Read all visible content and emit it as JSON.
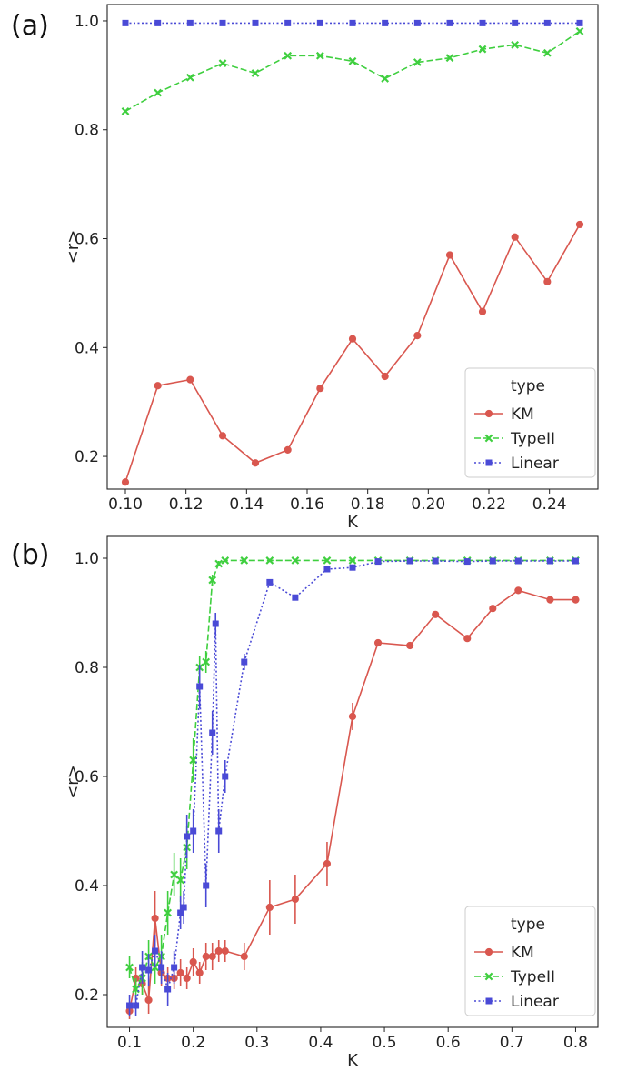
{
  "chart_data": [
    {
      "panel_label": "(a)",
      "type": "line",
      "xlabel": "K",
      "ylabel": "<r>",
      "xlim": [
        0.094,
        0.256
      ],
      "ylim": [
        0.14,
        1.03
      ],
      "xticks": [
        "0.10",
        "0.12",
        "0.14",
        "0.16",
        "0.18",
        "0.20",
        "0.22",
        "0.24"
      ],
      "yticks": [
        "0.2",
        "0.4",
        "0.6",
        "0.8",
        "1.0"
      ],
      "legend": {
        "title": "type",
        "placement": "lower right"
      },
      "series": [
        {
          "name": "KM",
          "color": "#d9574f",
          "marker": "circle",
          "dash": "solid",
          "x": [
            0.1,
            0.1107,
            0.1214,
            0.1321,
            0.1429,
            0.1536,
            0.1643,
            0.175,
            0.1857,
            0.1964,
            0.2071,
            0.2179,
            0.2286,
            0.2393,
            0.25
          ],
          "y": [
            0.153,
            0.33,
            0.341,
            0.238,
            0.188,
            0.212,
            0.325,
            0.416,
            0.347,
            0.422,
            0.57,
            0.466,
            0.603,
            0.521,
            0.626
          ]
        },
        {
          "name": "TypeII",
          "color": "#3fcf3f",
          "marker": "x",
          "dash": "dashed",
          "x": [
            0.1,
            0.1107,
            0.1214,
            0.1321,
            0.1429,
            0.1536,
            0.1643,
            0.175,
            0.1857,
            0.1964,
            0.2071,
            0.2179,
            0.2286,
            0.2393,
            0.25
          ],
          "y": [
            0.834,
            0.868,
            0.896,
            0.922,
            0.904,
            0.936,
            0.936,
            0.926,
            0.894,
            0.924,
            0.932,
            0.948,
            0.956,
            0.941,
            0.981
          ]
        },
        {
          "name": "Linear",
          "color": "#4a4ad6",
          "marker": "square",
          "dash": "dotted",
          "x": [
            0.1,
            0.1107,
            0.1214,
            0.1321,
            0.1429,
            0.1536,
            0.1643,
            0.175,
            0.1857,
            0.1964,
            0.2071,
            0.2179,
            0.2286,
            0.2393,
            0.25
          ],
          "y": [
            0.996,
            0.996,
            0.996,
            0.996,
            0.996,
            0.996,
            0.996,
            0.996,
            0.996,
            0.996,
            0.996,
            0.996,
            0.996,
            0.996,
            0.996
          ]
        }
      ]
    },
    {
      "panel_label": "(b)",
      "type": "line",
      "xlabel": "K",
      "ylabel": "<r>",
      "xlim": [
        0.065,
        0.835
      ],
      "ylim": [
        0.14,
        1.04
      ],
      "xticks": [
        "0.1",
        "0.2",
        "0.3",
        "0.4",
        "0.5",
        "0.6",
        "0.7",
        "0.8"
      ],
      "yticks": [
        "0.2",
        "0.4",
        "0.6",
        "0.8",
        "1.0"
      ],
      "legend": {
        "title": "type",
        "placement": "lower right"
      },
      "series": [
        {
          "name": "KM",
          "color": "#d9574f",
          "marker": "circle",
          "dash": "solid",
          "x": [
            0.1,
            0.11,
            0.12,
            0.13,
            0.14,
            0.15,
            0.16,
            0.17,
            0.18,
            0.19,
            0.2,
            0.21,
            0.22,
            0.23,
            0.24,
            0.25,
            0.28,
            0.32,
            0.36,
            0.41,
            0.45,
            0.49,
            0.54,
            0.58,
            0.63,
            0.67,
            0.71,
            0.76,
            0.8
          ],
          "y": [
            0.17,
            0.23,
            0.22,
            0.19,
            0.34,
            0.24,
            0.23,
            0.23,
            0.24,
            0.23,
            0.26,
            0.24,
            0.27,
            0.27,
            0.28,
            0.28,
            0.27,
            0.36,
            0.375,
            0.44,
            0.71,
            0.845,
            0.84,
            0.897,
            0.853,
            0.908,
            0.941,
            0.924,
            0.924
          ],
          "err": [
            0.015,
            0.02,
            0.02,
            0.025,
            0.05,
            0.025,
            0.02,
            0.02,
            0.025,
            0.02,
            0.025,
            0.02,
            0.025,
            0.025,
            0.02,
            0.02,
            0.025,
            0.05,
            0.045,
            0.04,
            0.025,
            0.005,
            0.005,
            0.005,
            0.005,
            0.005,
            0.005,
            0.005,
            0.005
          ]
        },
        {
          "name": "TypeII",
          "color": "#3fcf3f",
          "marker": "x",
          "dash": "dashed",
          "x": [
            0.1,
            0.11,
            0.12,
            0.13,
            0.14,
            0.15,
            0.16,
            0.17,
            0.18,
            0.19,
            0.2,
            0.21,
            0.22,
            0.23,
            0.24,
            0.25,
            0.28,
            0.32,
            0.36,
            0.41,
            0.45,
            0.49,
            0.54,
            0.58,
            0.63,
            0.67,
            0.71,
            0.76,
            0.8
          ],
          "y": [
            0.25,
            0.21,
            0.23,
            0.27,
            0.25,
            0.27,
            0.35,
            0.42,
            0.41,
            0.47,
            0.63,
            0.8,
            0.81,
            0.96,
            0.99,
            0.996,
            0.996,
            0.996,
            0.996,
            0.996,
            0.996,
            0.996,
            0.996,
            0.996,
            0.996,
            0.996,
            0.996,
            0.996,
            0.996
          ],
          "err": [
            0.02,
            0.02,
            0.03,
            0.03,
            0.03,
            0.04,
            0.04,
            0.04,
            0.04,
            0.04,
            0.04,
            0.02,
            0.02,
            0.01,
            0.005,
            0.003,
            0.003,
            0.003,
            0.003,
            0.003,
            0.003,
            0.003,
            0.003,
            0.003,
            0.003,
            0.003,
            0.003,
            0.003,
            0.003
          ]
        },
        {
          "name": "Linear",
          "color": "#4a4ad6",
          "marker": "square",
          "dash": "dotted",
          "x": [
            0.1,
            0.11,
            0.12,
            0.13,
            0.14,
            0.15,
            0.16,
            0.17,
            0.18,
            0.185,
            0.19,
            0.2,
            0.21,
            0.22,
            0.23,
            0.235,
            0.24,
            0.25,
            0.28,
            0.32,
            0.36,
            0.41,
            0.45,
            0.49,
            0.54,
            0.58,
            0.63,
            0.67,
            0.71,
            0.76,
            0.8
          ],
          "y": [
            0.18,
            0.18,
            0.25,
            0.245,
            0.28,
            0.25,
            0.21,
            0.25,
            0.35,
            0.36,
            0.49,
            0.5,
            0.765,
            0.4,
            0.68,
            0.88,
            0.5,
            0.6,
            0.81,
            0.956,
            0.928,
            0.98,
            0.983,
            0.994,
            0.995,
            0.995,
            0.994,
            0.995,
            0.995,
            0.995,
            0.995
          ],
          "err": [
            0.02,
            0.02,
            0.03,
            0.03,
            0.03,
            0.03,
            0.03,
            0.03,
            0.03,
            0.03,
            0.04,
            0.04,
            0.04,
            0.04,
            0.04,
            0.02,
            0.04,
            0.03,
            0.015,
            0.005,
            0.005,
            0.005,
            0.005,
            0.003,
            0.003,
            0.003,
            0.003,
            0.003,
            0.003,
            0.003,
            0.003
          ]
        }
      ]
    }
  ]
}
